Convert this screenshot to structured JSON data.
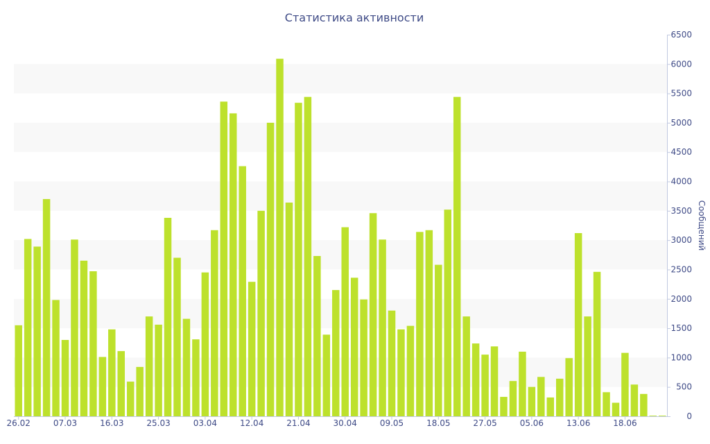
{
  "chart_data": {
    "type": "bar",
    "title": "Статистика активности",
    "ylabel": "Сообщений",
    "xlabel": "",
    "ylim": [
      0,
      6500
    ],
    "ytick_step": 500,
    "y_axis_side": "right",
    "grid": "alternating horizontal bands",
    "legend": "none",
    "bar_color": "#bde12c",
    "band_color": "#f8f8f8",
    "text_color": "#3e4a86",
    "x_tick_labels": [
      {
        "index": 0,
        "label": "26.02"
      },
      {
        "index": 5,
        "label": "07.03"
      },
      {
        "index": 10,
        "label": "16.03"
      },
      {
        "index": 15,
        "label": "25.03"
      },
      {
        "index": 20,
        "label": "03.04"
      },
      {
        "index": 25,
        "label": "12.04"
      },
      {
        "index": 30,
        "label": "21.04"
      },
      {
        "index": 35,
        "label": "30.04"
      },
      {
        "index": 40,
        "label": "09.05"
      },
      {
        "index": 45,
        "label": "18.05"
      },
      {
        "index": 50,
        "label": "27.05"
      },
      {
        "index": 55,
        "label": "05.06"
      },
      {
        "index": 60,
        "label": "13.06"
      },
      {
        "index": 65,
        "label": "18.06"
      }
    ],
    "values": [
      1550,
      3020,
      2890,
      3700,
      1980,
      1300,
      3010,
      2650,
      2470,
      1010,
      1480,
      1110,
      590,
      840,
      1700,
      1560,
      3380,
      2700,
      1660,
      1310,
      2450,
      3170,
      5360,
      5160,
      4260,
      2290,
      3500,
      5000,
      6090,
      3640,
      5340,
      5440,
      2730,
      1390,
      2150,
      3220,
      2360,
      1990,
      3460,
      3010,
      1800,
      1480,
      1540,
      3140,
      3170,
      2580,
      3520,
      5440,
      1700,
      1240,
      1050,
      1190,
      330,
      600,
      1100,
      500,
      670,
      320,
      640,
      990,
      3120,
      1700,
      2460,
      410,
      230,
      1080,
      540,
      380,
      10,
      10
    ]
  }
}
